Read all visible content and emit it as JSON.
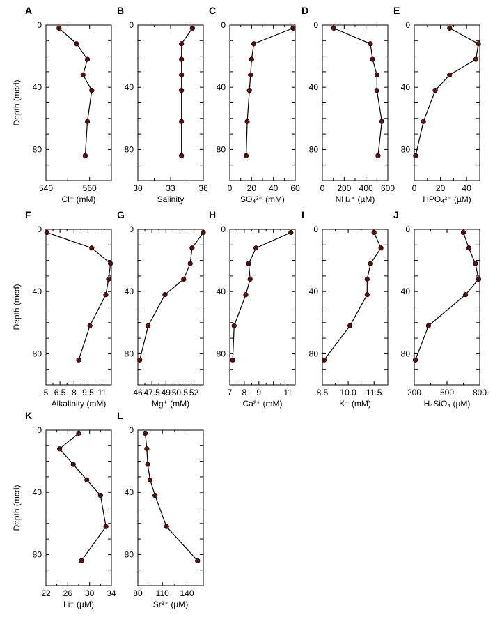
{
  "depth_axis": {
    "label": "Depth (mcd)",
    "ylim": [
      0,
      100
    ],
    "ticks": [
      0,
      40,
      80
    ],
    "inverted": true
  },
  "style": {
    "line_color": "#000000",
    "marker_color": "#5a0f0f",
    "frame_color": "#000000"
  },
  "chart_data": [
    {
      "letter": "A",
      "type": "line",
      "xlabel": "Cl⁻ (mM)",
      "xlim": [
        540,
        570
      ],
      "xticks": [
        540,
        560
      ],
      "x": [
        546,
        554,
        559,
        557,
        561,
        559,
        558
      ],
      "y": [
        2,
        12,
        22,
        32,
        42,
        62,
        84
      ]
    },
    {
      "letter": "B",
      "type": "line",
      "xlabel": "Salinity",
      "xlim": [
        30,
        36
      ],
      "xticks": [
        30,
        33,
        36
      ],
      "x": [
        35,
        34,
        34,
        34,
        34,
        34,
        34
      ],
      "y": [
        2,
        12,
        22,
        32,
        42,
        62,
        84
      ]
    },
    {
      "letter": "C",
      "type": "line",
      "xlabel": "SO₄²⁻ (mM)",
      "xlim": [
        0,
        60
      ],
      "xticks": [
        0,
        20,
        40,
        60
      ],
      "x": [
        58,
        22,
        20,
        19,
        18,
        16,
        15
      ],
      "y": [
        2,
        12,
        22,
        32,
        42,
        62,
        84
      ]
    },
    {
      "letter": "D",
      "type": "line",
      "xlabel": "NH₄⁺ (µM)",
      "xlim": [
        0,
        600
      ],
      "xticks": [
        0,
        200,
        400,
        600
      ],
      "x": [
        105,
        440,
        460,
        500,
        500,
        545,
        510
      ],
      "y": [
        2,
        12,
        22,
        32,
        42,
        62,
        84
      ]
    },
    {
      "letter": "E",
      "type": "line",
      "xlabel": "HPO₄²⁻ (µM)",
      "xlim": [
        0,
        50
      ],
      "xticks": [
        0,
        20,
        40
      ],
      "x": [
        27,
        49,
        47,
        27,
        16,
        7,
        1
      ],
      "y": [
        2,
        12,
        22,
        32,
        42,
        62,
        84
      ]
    },
    {
      "letter": "F",
      "type": "line",
      "xlabel": "Alkalinity (mM)",
      "xlim": [
        5,
        12
      ],
      "xticks": [
        5,
        6.5,
        8,
        9.5,
        11
      ],
      "xtick_labels": [
        "5",
        "6.5",
        "8",
        "9.5",
        "11"
      ],
      "x": [
        5.1,
        9.9,
        11.9,
        11.7,
        11.4,
        9.7,
        8.5
      ],
      "y": [
        2,
        12,
        22,
        32,
        42,
        62,
        84
      ]
    },
    {
      "letter": "G",
      "type": "line",
      "xlabel": "Mg⁺ (mM)",
      "xlim": [
        46,
        53
      ],
      "xticks": [
        46,
        47.5,
        49,
        50.5,
        52
      ],
      "xtick_labels": [
        "46",
        "47.5",
        "49",
        "50.5",
        "52"
      ],
      "x": [
        53,
        51.8,
        51.6,
        50.9,
        48.9,
        47.1,
        46.2
      ],
      "y": [
        2,
        12,
        22,
        32,
        42,
        62,
        84
      ]
    },
    {
      "letter": "H",
      "type": "line",
      "xlabel": "Ca²⁺ (mM)",
      "xlim": [
        7,
        11.5
      ],
      "xticks": [
        7,
        8,
        9,
        10,
        11
      ],
      "xtick_labels": [
        "7",
        "8",
        "9",
        "",
        "11"
      ],
      "x": [
        11.2,
        8.8,
        8.3,
        8.4,
        8.1,
        7.3,
        7.2
      ],
      "y": [
        2,
        12,
        22,
        32,
        42,
        62,
        84
      ]
    },
    {
      "letter": "I",
      "type": "line",
      "xlabel": "K⁺ (mM)",
      "xlim": [
        8.5,
        12.3
      ],
      "xticks": [
        8.5,
        10,
        11.5
      ],
      "xtick_labels": [
        "8.5",
        "10.0",
        "11.5"
      ],
      "x": [
        11.5,
        11.9,
        11.3,
        11.1,
        11.1,
        10.1,
        8.6
      ],
      "y": [
        2,
        12,
        22,
        32,
        42,
        62,
        84
      ]
    },
    {
      "letter": "J",
      "type": "line",
      "xlabel": "H₄SiO₄ (µM)",
      "xlim": [
        200,
        800
      ],
      "xticks": [
        200,
        500,
        800
      ],
      "x": [
        650,
        700,
        760,
        790,
        670,
        330,
        210
      ],
      "y": [
        2,
        12,
        22,
        32,
        42,
        62,
        84
      ]
    },
    {
      "letter": "K",
      "type": "line",
      "xlabel": "Li⁺ (µM)",
      "xlim": [
        22,
        34
      ],
      "xticks": [
        22,
        26,
        30,
        34
      ],
      "x": [
        28,
        24.5,
        27,
        29.5,
        32,
        33,
        28.5
      ],
      "y": [
        2,
        12,
        22,
        32,
        42,
        62,
        84
      ]
    },
    {
      "letter": "L",
      "type": "line",
      "xlabel": "Sr²⁺ (µM)",
      "xlim": [
        80,
        160
      ],
      "xticks": [
        80,
        110,
        140
      ],
      "x": [
        89,
        91,
        92,
        95,
        101,
        115,
        153
      ],
      "y": [
        2,
        12,
        22,
        32,
        42,
        62,
        84
      ]
    }
  ]
}
